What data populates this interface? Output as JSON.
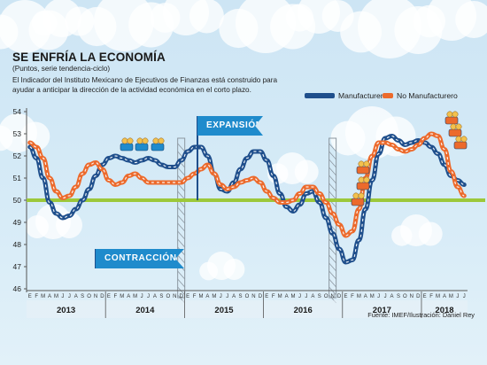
{
  "header": {
    "title": "SE ENFRÍA LA ECONOMÍA",
    "subtitle": "(Puntos, serie tendencia-ciclo)",
    "description": "El Indicador del Instituto Mexicano de Ejecutivos de Finanzas está construido para ayudar a anticipar la dirección de la actividad económica en el corto plazo."
  },
  "callouts": {
    "expansion": "EXPANSIÓN",
    "contraction": "CONTRACCIÓN"
  },
  "source": "Fuente: IMEF/Ilustración: Daniel Rey",
  "colors": {
    "manufacturero": "#1f4f8c",
    "no_manufacturero": "#ec6a2c",
    "threshold": "#9cc83a",
    "accent": "#1f8bcc"
  },
  "chart_data": {
    "type": "line",
    "title": "SE ENFRÍA LA ECONOMÍA",
    "ylim": [
      46,
      54
    ],
    "y_ticks": [
      46,
      47,
      48,
      49,
      50,
      51,
      52,
      53,
      54
    ],
    "threshold": 50,
    "grid": false,
    "legend_position": "top-right",
    "month_letters": [
      "E",
      "F",
      "M",
      "A",
      "M",
      "J",
      "J",
      "A",
      "S",
      "O",
      "N",
      "D"
    ],
    "years": [
      "2013",
      "2014",
      "2015",
      "2016",
      "2017",
      "2018"
    ],
    "x": [
      "2013-01",
      "2013-02",
      "2013-03",
      "2013-04",
      "2013-05",
      "2013-06",
      "2013-07",
      "2013-08",
      "2013-09",
      "2013-10",
      "2013-11",
      "2013-12",
      "2014-01",
      "2014-02",
      "2014-03",
      "2014-04",
      "2014-05",
      "2014-06",
      "2014-07",
      "2014-08",
      "2014-09",
      "2014-10",
      "2014-11",
      "2014-12",
      "2015-01",
      "2015-02",
      "2015-03",
      "2015-04",
      "2015-05",
      "2015-06",
      "2015-07",
      "2015-08",
      "2015-09",
      "2015-10",
      "2015-11",
      "2015-12",
      "2016-01",
      "2016-02",
      "2016-03",
      "2016-04",
      "2016-05",
      "2016-06",
      "2016-07",
      "2016-08",
      "2016-09",
      "2016-10",
      "2016-11",
      "2016-12",
      "2017-01",
      "2017-02",
      "2017-03",
      "2017-04",
      "2017-05",
      "2017-06",
      "2017-07",
      "2017-08",
      "2017-09",
      "2017-10",
      "2017-11",
      "2017-12",
      "2018-01",
      "2018-02",
      "2018-03",
      "2018-04",
      "2018-05",
      "2018-06",
      "2018-07"
    ],
    "series": [
      {
        "name": "Manufacturero",
        "color": "#1f4f8c",
        "values": [
          52.4,
          51.9,
          51.0,
          49.9,
          49.4,
          49.2,
          49.3,
          49.6,
          50.0,
          50.5,
          51.1,
          51.6,
          51.9,
          52.0,
          51.9,
          51.8,
          51.7,
          51.8,
          51.9,
          51.8,
          51.6,
          51.5,
          51.5,
          51.8,
          52.2,
          52.4,
          52.4,
          52.0,
          51.2,
          50.5,
          50.4,
          50.8,
          51.4,
          51.9,
          52.2,
          52.2,
          51.8,
          51.1,
          50.3,
          49.7,
          49.5,
          49.8,
          50.3,
          50.4,
          49.9,
          49.2,
          48.5,
          47.8,
          47.2,
          47.3,
          48.2,
          49.6,
          50.9,
          52.1,
          52.8,
          52.9,
          52.7,
          52.5,
          52.6,
          52.7,
          52.6,
          52.4,
          52.1,
          51.6,
          51.1,
          50.9,
          50.7
        ]
      },
      {
        "name": "No Manufacturero",
        "color": "#ec6a2c",
        "values": [
          52.6,
          52.4,
          51.9,
          51.0,
          50.4,
          50.1,
          50.2,
          50.6,
          51.2,
          51.6,
          51.7,
          51.4,
          50.9,
          50.7,
          50.8,
          51.1,
          51.2,
          51.0,
          50.8,
          50.8,
          50.8,
          50.8,
          50.8,
          50.8,
          51.0,
          51.2,
          51.4,
          51.6,
          51.2,
          50.7,
          50.5,
          50.6,
          50.8,
          50.9,
          51.0,
          50.8,
          50.4,
          50.1,
          49.9,
          49.9,
          50.0,
          50.3,
          50.6,
          50.6,
          50.3,
          49.9,
          49.4,
          48.9,
          48.4,
          48.6,
          49.6,
          51.0,
          52.0,
          52.6,
          52.6,
          52.5,
          52.3,
          52.2,
          52.3,
          52.5,
          52.8,
          53.0,
          52.9,
          52.3,
          51.3,
          50.6,
          50.2
        ]
      }
    ]
  }
}
